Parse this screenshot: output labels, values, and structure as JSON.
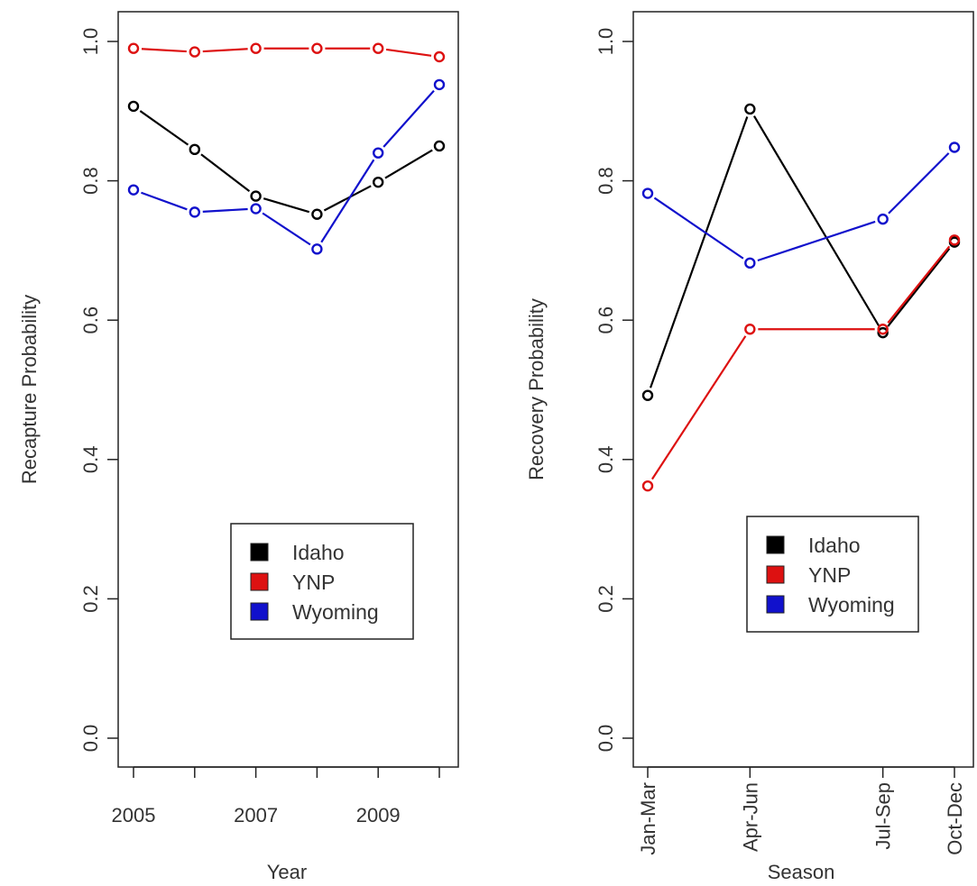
{
  "chart_data": [
    {
      "type": "line",
      "title": "",
      "xlabel": "Year",
      "ylabel": "Recapture Probability",
      "x": [
        2005,
        2006,
        2007,
        2008,
        2009,
        2010
      ],
      "xticks": [
        2005,
        2006,
        2007,
        2008,
        2009,
        2010
      ],
      "xtick_labels": [
        "2005",
        "",
        "2007",
        "",
        "2009",
        ""
      ],
      "xlim": [
        2005,
        2010
      ],
      "ylim": [
        0.0,
        1.0
      ],
      "yticks": [
        "0.0",
        "0.2",
        "0.4",
        "0.6",
        "0.8",
        "1.0"
      ],
      "series": [
        {
          "name": "Idaho",
          "color": "#000000",
          "values": [
            0.907,
            0.845,
            0.778,
            0.752,
            0.798,
            0.85
          ]
        },
        {
          "name": "YNP",
          "color": "#dd1111",
          "values": [
            0.99,
            0.985,
            0.99,
            0.99,
            0.99,
            0.978
          ]
        },
        {
          "name": "Wyoming",
          "color": "#1111cc",
          "values": [
            0.787,
            0.755,
            0.76,
            0.702,
            0.84,
            0.938
          ]
        }
      ],
      "legend": {
        "position": "bottom-right",
        "entries": [
          "Idaho",
          "YNP",
          "Wyoming"
        ]
      },
      "grid": false
    },
    {
      "type": "line",
      "title": "",
      "xlabel": "Season",
      "ylabel": "Recovery Probability",
      "x": [
        1,
        2,
        3.3,
        4
      ],
      "categories": [
        "Jan-Mar",
        "Apr-Jun",
        "Jul-Sep",
        "Oct-Dec"
      ],
      "xlim": [
        1,
        4
      ],
      "ylim": [
        0.0,
        1.0
      ],
      "yticks": [
        "0.0",
        "0.2",
        "0.4",
        "0.6",
        "0.8",
        "1.0"
      ],
      "series": [
        {
          "name": "Idaho",
          "color": "#000000",
          "values": [
            0.492,
            0.903,
            0.582,
            0.712
          ]
        },
        {
          "name": "YNP",
          "color": "#dd1111",
          "values": [
            0.362,
            0.587,
            0.587,
            0.715
          ]
        },
        {
          "name": "Wyoming",
          "color": "#1111cc",
          "values": [
            0.782,
            0.682,
            0.745,
            0.848
          ]
        }
      ],
      "legend": {
        "position": "bottom-right",
        "entries": [
          "Idaho",
          "YNP",
          "Wyoming"
        ]
      },
      "grid": false
    }
  ]
}
